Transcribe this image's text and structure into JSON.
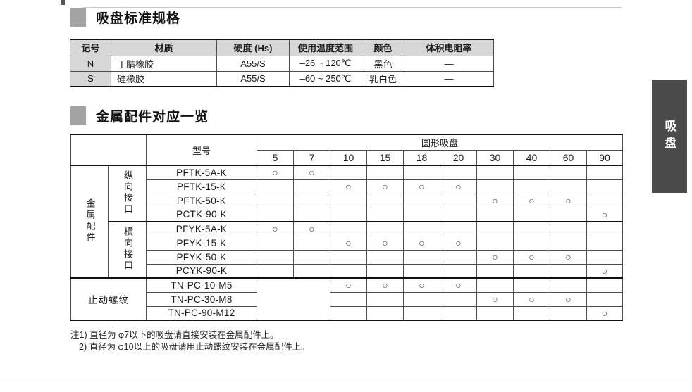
{
  "page": {
    "side_tab_label": "吸盘"
  },
  "section1": {
    "title": "吸盘标准规格",
    "table": {
      "headers": [
        "记号",
        "材质",
        "硬度 (Hs)",
        "使用温度范围",
        "颜色",
        "体积电阻率"
      ],
      "rows": [
        {
          "code": "N",
          "material": "丁腈橡胶",
          "hardness": "A55/S",
          "temp": "–26 ~ 120℃",
          "color": "黑色",
          "resistivity": "—"
        },
        {
          "code": "S",
          "material": "硅橡胶",
          "hardness": "A55/S",
          "temp": "–60 ~ 250℃",
          "color": "乳白色",
          "resistivity": "—"
        }
      ]
    }
  },
  "section2": {
    "title": "金属配件对应一览",
    "table": {
      "model_header": "型号",
      "span_header": "圆形吸盘",
      "sizes": [
        "5",
        "7",
        "10",
        "15",
        "18",
        "20",
        "30",
        "40",
        "60",
        "90"
      ],
      "mark_symbol": "○",
      "groups": [
        {
          "category": "金属配件",
          "orientation": "纵向接口",
          "rows": [
            {
              "model": "PFTK-5A-K",
              "marks": [
                1,
                1,
                0,
                0,
                0,
                0,
                0,
                0,
                0,
                0
              ]
            },
            {
              "model": "PFTK-15-K",
              "marks": [
                0,
                0,
                1,
                1,
                1,
                1,
                0,
                0,
                0,
                0
              ]
            },
            {
              "model": "PFTK-50-K",
              "marks": [
                0,
                0,
                0,
                0,
                0,
                0,
                1,
                1,
                1,
                0
              ]
            },
            {
              "model": "PCTK-90-K",
              "marks": [
                0,
                0,
                0,
                0,
                0,
                0,
                0,
                0,
                0,
                1
              ]
            }
          ]
        },
        {
          "category": "金属配件",
          "orientation": "横向接口",
          "rows": [
            {
              "model": "PFYK-5A-K",
              "marks": [
                1,
                1,
                0,
                0,
                0,
                0,
                0,
                0,
                0,
                0
              ]
            },
            {
              "model": "PFYK-15-K",
              "marks": [
                0,
                0,
                1,
                1,
                1,
                1,
                0,
                0,
                0,
                0
              ]
            },
            {
              "model": "PFYK-50-K",
              "marks": [
                0,
                0,
                0,
                0,
                0,
                0,
                1,
                1,
                1,
                0
              ]
            },
            {
              "model": "PCYK-90-K",
              "marks": [
                0,
                0,
                0,
                0,
                0,
                0,
                0,
                0,
                0,
                1
              ]
            }
          ]
        },
        {
          "category": "止动螺纹",
          "orientation": null,
          "rows": [
            {
              "model": "TN-PC-10-M5",
              "marks": [
                0,
                0,
                1,
                1,
                1,
                1,
                0,
                0,
                0,
                0
              ]
            },
            {
              "model": "TN-PC-30-M8",
              "marks": [
                0,
                0,
                0,
                0,
                0,
                0,
                1,
                1,
                1,
                0
              ]
            },
            {
              "model": "TN-PC-90-M12",
              "marks": [
                0,
                0,
                0,
                0,
                0,
                0,
                0,
                0,
                0,
                1
              ]
            }
          ]
        }
      ]
    }
  },
  "notes": {
    "line1": "注1) 直径为 φ7以下的吸盘请直接安装在金属配件上。",
    "line2": "2) 直径为 φ10以上的吸盘请用止动螺纹安装在金属配件上。"
  }
}
